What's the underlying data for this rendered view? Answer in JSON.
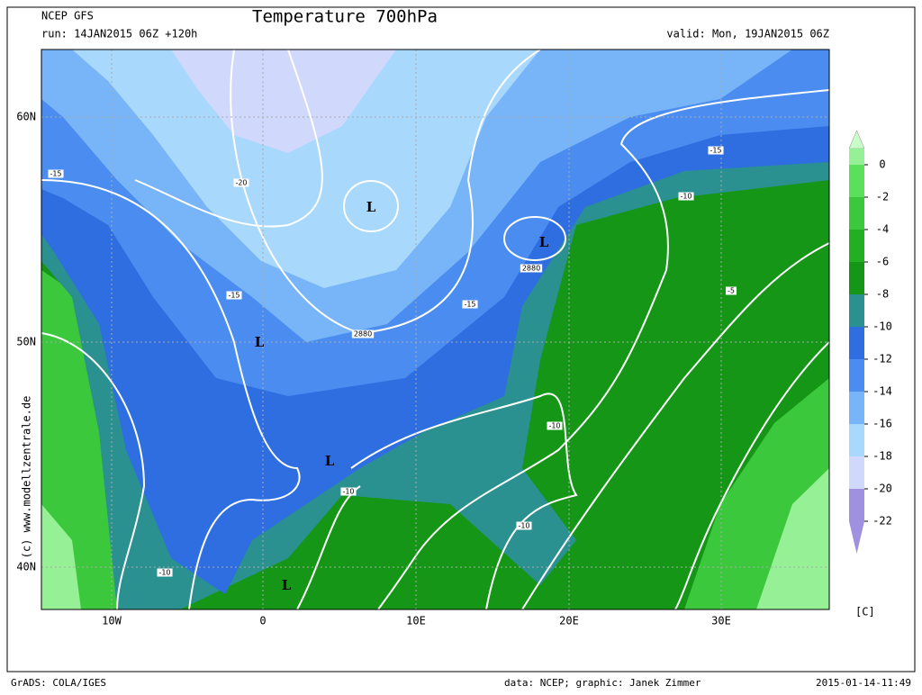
{
  "header": {
    "model": "NCEP GFS",
    "title": "Temperature 700hPa",
    "run": "run: 14JAN2015 06Z +120h",
    "valid": "valid: Mon, 19JAN2015 06Z"
  },
  "side_label": "(c) www.modellzentrale.de",
  "map": {
    "lat_labels": [
      "60N",
      "50N",
      "40N"
    ],
    "lon_labels": [
      "10W",
      "0",
      "10E",
      "20E",
      "30E"
    ],
    "contour_labels": [
      "-15",
      "-20",
      "-15",
      "-15",
      "-15",
      "-10",
      "-5",
      "-10",
      "-10",
      "-10",
      "-10",
      "2880",
      "2880"
    ],
    "lows": [
      "L",
      "L",
      "L",
      "L",
      "L"
    ]
  },
  "colorbar": {
    "levels": [
      {
        "label": "0",
        "color": "#96f096"
      },
      {
        "label": "-2",
        "color": "#5ae05a"
      },
      {
        "label": "-4",
        "color": "#3cc83c"
      },
      {
        "label": "-6",
        "color": "#22b022"
      },
      {
        "label": "-8",
        "color": "#169616"
      },
      {
        "label": "-10",
        "color": "#2a9090"
      },
      {
        "label": "-12",
        "color": "#2e6ee0"
      },
      {
        "label": "-14",
        "color": "#4a8cf0"
      },
      {
        "label": "-16",
        "color": "#78b4f8"
      },
      {
        "label": "-18",
        "color": "#a8d8fc"
      },
      {
        "label": "-20",
        "color": "#d0d8fc"
      },
      {
        "label": "-22",
        "color": "#a090e0"
      }
    ],
    "top_color": "#c8ffc8",
    "unit": "[C]"
  },
  "footer": {
    "left": "GrADS: COLA/IGES",
    "center": "data: NCEP; graphic: Janek Zimmer",
    "right": "2015-01-14-11:49"
  }
}
